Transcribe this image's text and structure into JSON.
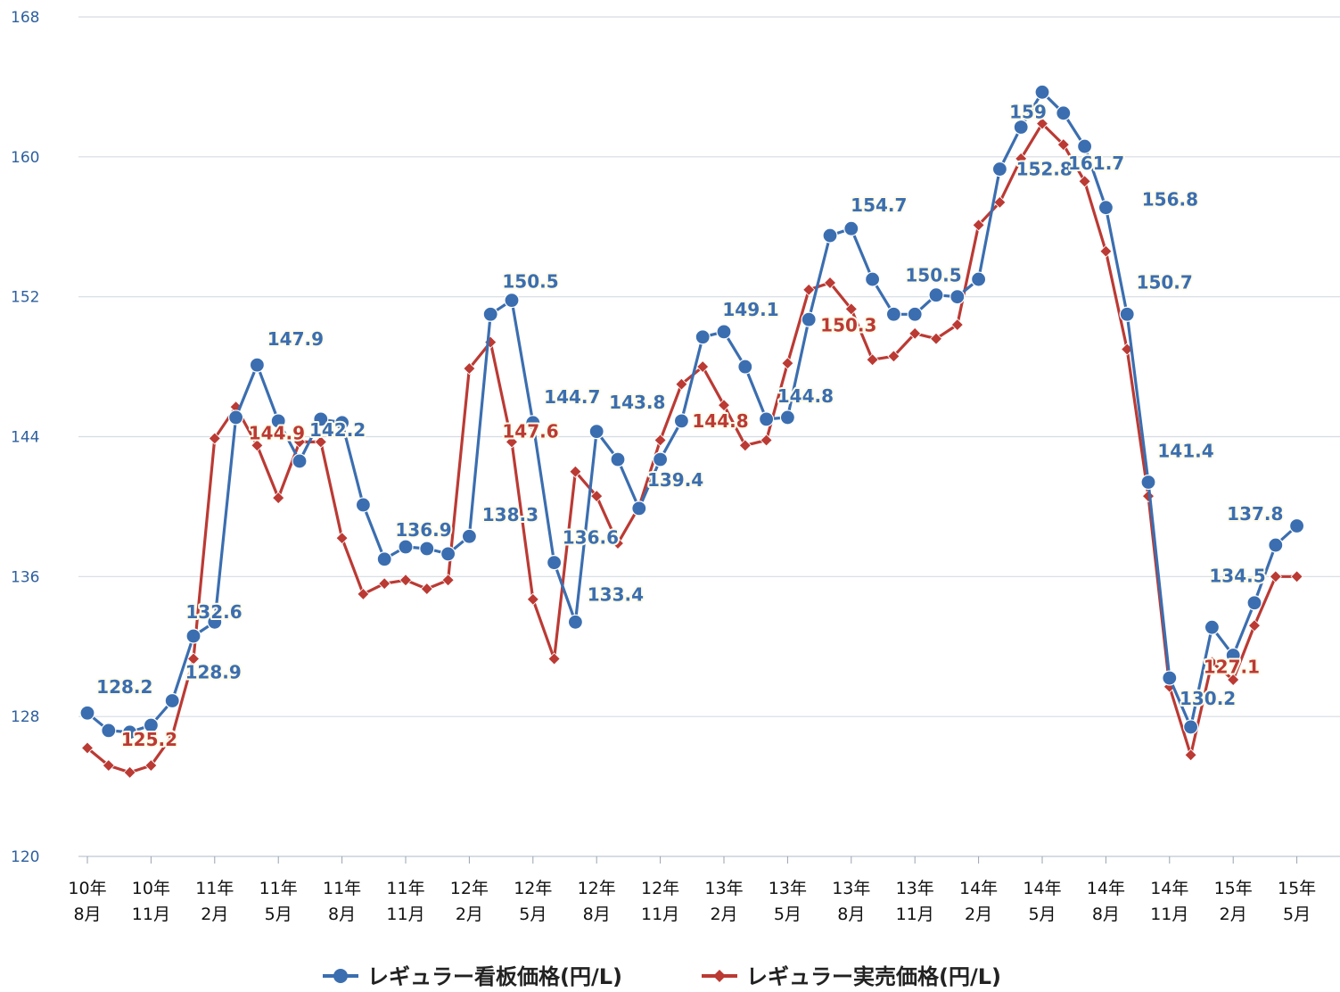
{
  "chart_data": {
    "type": "line",
    "title": "",
    "xlabel": "",
    "ylabel": "",
    "ylim": [
      120,
      168
    ],
    "yticks": [
      120,
      128,
      136,
      144,
      152,
      160,
      168
    ],
    "grid": "horizontal",
    "legend_position": "bottom",
    "x_tick_labels": [
      {
        "index": 0,
        "line1": "10年",
        "line2": "8月"
      },
      {
        "index": 3,
        "line1": "10年",
        "line2": "11月"
      },
      {
        "index": 6,
        "line1": "11年",
        "line2": "2月"
      },
      {
        "index": 9,
        "line1": "11年",
        "line2": "5月"
      },
      {
        "index": 12,
        "line1": "11年",
        "line2": "8月"
      },
      {
        "index": 15,
        "line1": "11年",
        "line2": "11月"
      },
      {
        "index": 18,
        "line1": "12年",
        "line2": "2月"
      },
      {
        "index": 21,
        "line1": "12年",
        "line2": "5月"
      },
      {
        "index": 24,
        "line1": "12年",
        "line2": "8月"
      },
      {
        "index": 27,
        "line1": "12年",
        "line2": "11月"
      },
      {
        "index": 30,
        "line1": "13年",
        "line2": "2月"
      },
      {
        "index": 33,
        "line1": "13年",
        "line2": "5月"
      },
      {
        "index": 36,
        "line1": "13年",
        "line2": "8月"
      },
      {
        "index": 39,
        "line1": "13年",
        "line2": "11月"
      },
      {
        "index": 42,
        "line1": "14年",
        "line2": "2月"
      },
      {
        "index": 45,
        "line1": "14年",
        "line2": "5月"
      },
      {
        "index": 48,
        "line1": "14年",
        "line2": "8月"
      },
      {
        "index": 51,
        "line1": "14年",
        "line2": "11月"
      },
      {
        "index": 54,
        "line1": "15年",
        "line2": "2月"
      },
      {
        "index": 57,
        "line1": "15年",
        "line2": "5月"
      }
    ],
    "series": [
      {
        "name": "レギュラー看板価格(円/L)",
        "color": "#3b6eb0",
        "marker": "circle",
        "values": [
          128.2,
          127.2,
          127.1,
          127.5,
          128.9,
          132.6,
          133.4,
          145.1,
          148.1,
          144.9,
          142.6,
          145.0,
          144.8,
          140.1,
          137.0,
          137.7,
          137.6,
          137.3,
          138.3,
          151.0,
          151.8,
          144.8,
          136.8,
          133.4,
          144.3,
          142.7,
          139.9,
          142.7,
          144.9,
          149.7,
          150.0,
          148.0,
          145.0,
          145.1,
          150.7,
          155.5,
          155.9,
          153.0,
          151.0,
          151.0,
          152.1,
          152.0,
          153.0,
          159.3,
          161.7,
          163.7,
          162.5,
          160.6,
          157.1,
          151.0,
          141.4,
          130.2,
          127.4,
          133.1,
          131.5,
          134.5,
          137.8,
          138.9
        ]
      },
      {
        "name": "レギュラー実売価格(円/L)",
        "color": "#bb3a34",
        "marker": "diamond",
        "values": [
          126.2,
          125.2,
          124.8,
          125.2,
          126.9,
          131.3,
          143.9,
          145.7,
          143.5,
          140.5,
          143.7,
          143.7,
          138.2,
          135.0,
          135.6,
          135.8,
          135.3,
          135.8,
          147.9,
          149.4,
          143.7,
          134.7,
          131.3,
          142.0,
          140.6,
          137.9,
          140.0,
          143.8,
          147.0,
          148.0,
          145.8,
          143.5,
          143.8,
          148.2,
          152.4,
          152.8,
          151.3,
          148.4,
          148.6,
          149.9,
          149.6,
          150.4,
          156.1,
          157.4,
          159.9,
          161.9,
          160.7,
          158.6,
          154.6,
          149.0,
          140.6,
          129.7,
          125.8,
          131.1,
          130.1,
          133.2,
          136.0,
          136.0
        ]
      }
    ],
    "data_labels": [
      {
        "series": 0,
        "index": 1,
        "text": "128.2",
        "dx": 18,
        "dy": -42
      },
      {
        "series": 1,
        "index": 3,
        "text": "125.2",
        "dx": -2,
        "dy": -22
      },
      {
        "series": 0,
        "index": 5,
        "text": "132.6",
        "dx": 23,
        "dy": -20
      },
      {
        "series": 0,
        "index": 4,
        "text": "128.9",
        "dx": 46,
        "dy": -25
      },
      {
        "series": 0,
        "index": 8,
        "text": "147.9",
        "dx": 43,
        "dy": -22
      },
      {
        "series": 1,
        "index": 8,
        "text": "144.9",
        "dx": 22,
        "dy": -7
      },
      {
        "series": 0,
        "index": 12,
        "text": "142.2",
        "dx": -5,
        "dy": 15
      },
      {
        "series": 0,
        "index": 15,
        "text": "136.9",
        "dx": 20,
        "dy": -12
      },
      {
        "series": 0,
        "index": 18,
        "text": "138.3",
        "dx": 46,
        "dy": -17
      },
      {
        "series": 0,
        "index": 20,
        "text": "150.5",
        "dx": 21,
        "dy": -14
      },
      {
        "series": 1,
        "index": 20,
        "text": "147.6",
        "dx": 21,
        "dy": -5
      },
      {
        "series": 0,
        "index": 21,
        "text": "144.7",
        "dx": 44,
        "dy": -22
      },
      {
        "series": 0,
        "index": 23,
        "text": "136.6",
        "dx": 17,
        "dy": -88
      },
      {
        "series": 0,
        "index": 23,
        "text": "133.4",
        "dx": 45,
        "dy": -24
      },
      {
        "series": 0,
        "index": 26,
        "text": "143.8",
        "dx": -2,
        "dy": -112
      },
      {
        "series": 0,
        "index": 27,
        "text": "139.4",
        "dx": 17,
        "dy": 30
      },
      {
        "series": 0,
        "index": 30,
        "text": "149.1",
        "dx": 30,
        "dy": -18
      },
      {
        "series": 1,
        "index": 30,
        "text": "144.8",
        "dx": -4,
        "dy": 25
      },
      {
        "series": 0,
        "index": 33,
        "text": "144.8",
        "dx": 20,
        "dy": -17
      },
      {
        "series": 0,
        "index": 36,
        "text": "154.7",
        "dx": 31,
        "dy": -19
      },
      {
        "series": 1,
        "index": 36,
        "text": "150.3",
        "dx": -3,
        "dy": 25
      },
      {
        "series": 0,
        "index": 40,
        "text": "150.5",
        "dx": -3,
        "dy": -15
      },
      {
        "series": 0,
        "index": 44,
        "text": "152.8",
        "dx": 26,
        "dy": 54
      },
      {
        "series": 0,
        "index": 45,
        "text": "159",
        "dx": -16,
        "dy": 29
      },
      {
        "series": 0,
        "index": 47,
        "text": "161.7",
        "dx": 13,
        "dy": 26
      },
      {
        "series": 0,
        "index": 48,
        "text": "156.8",
        "dx": 72,
        "dy": -2
      },
      {
        "series": 0,
        "index": 49,
        "text": "150.7",
        "dx": 42,
        "dy": -29
      },
      {
        "series": 0,
        "index": 50,
        "text": "141.4",
        "dx": 42,
        "dy": -28
      },
      {
        "series": 0,
        "index": 52,
        "text": "130.2",
        "dx": 19,
        "dy": -25
      },
      {
        "series": 1,
        "index": 53,
        "text": "127.1",
        "dx": 22,
        "dy": 12
      },
      {
        "series": 0,
        "index": 55,
        "text": "134.5",
        "dx": -19,
        "dy": -23
      },
      {
        "series": 0,
        "index": 56,
        "text": "137.8",
        "dx": -23,
        "dy": -28
      }
    ]
  }
}
